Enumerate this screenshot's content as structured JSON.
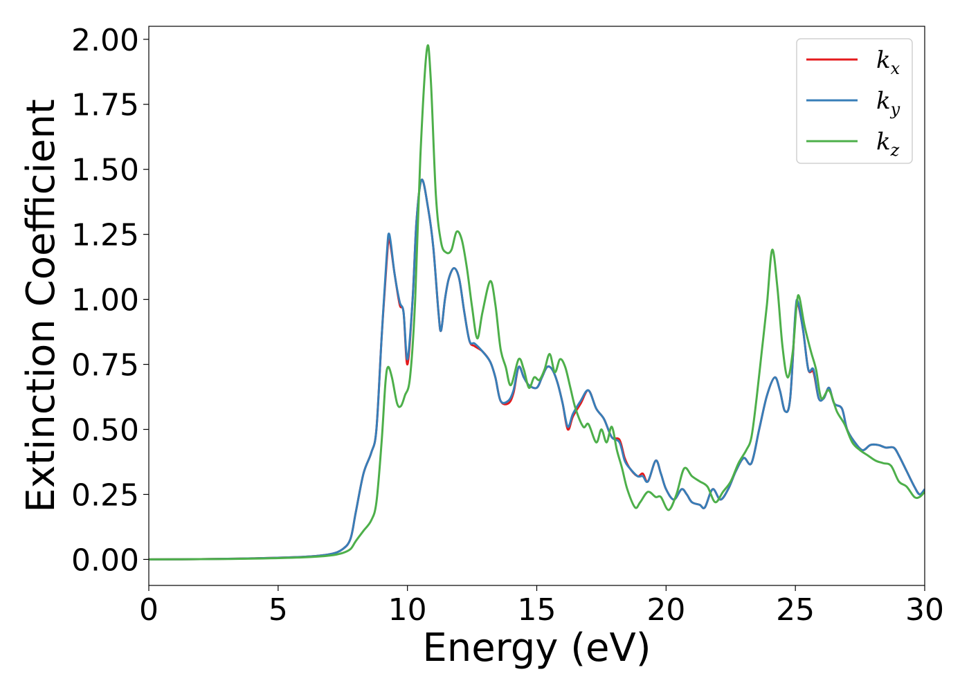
{
  "chart_data": {
    "type": "line",
    "xlabel": "Energy (eV)",
    "ylabel": "Extinction Coefficient",
    "xlim": [
      0,
      30
    ],
    "ylim": [
      -0.1,
      2.05
    ],
    "xticks": [
      0,
      5,
      10,
      15,
      20,
      25,
      30
    ],
    "xtick_labels": [
      "0",
      "5",
      "10",
      "15",
      "20",
      "25",
      "30"
    ],
    "yticks": [
      0.0,
      0.25,
      0.5,
      0.75,
      1.0,
      1.25,
      1.5,
      1.75,
      2.0
    ],
    "ytick_labels": [
      "0.00",
      "0.25",
      "0.50",
      "0.75",
      "1.00",
      "1.25",
      "1.50",
      "1.75",
      "2.00"
    ],
    "grid": false,
    "legend_position": "top-right",
    "series": [
      {
        "name": "k",
        "subscript": "x",
        "color": "#e41a1c",
        "points": [
          [
            0,
            0
          ],
          [
            2,
            0.001
          ],
          [
            4,
            0.004
          ],
          [
            6,
            0.01
          ],
          [
            7,
            0.02
          ],
          [
            7.5,
            0.04
          ],
          [
            7.8,
            0.08
          ],
          [
            8.0,
            0.18
          ],
          [
            8.3,
            0.33
          ],
          [
            8.6,
            0.41
          ],
          [
            8.8,
            0.5
          ],
          [
            9.0,
            0.85
          ],
          [
            9.2,
            1.15
          ],
          [
            9.3,
            1.23
          ],
          [
            9.5,
            1.1
          ],
          [
            9.7,
            0.98
          ],
          [
            9.85,
            0.95
          ],
          [
            10.0,
            0.75
          ],
          [
            10.2,
            1.0
          ],
          [
            10.35,
            1.3
          ],
          [
            10.55,
            1.46
          ],
          [
            10.8,
            1.35
          ],
          [
            11.0,
            1.2
          ],
          [
            11.2,
            0.95
          ],
          [
            11.3,
            0.88
          ],
          [
            11.45,
            1.0
          ],
          [
            11.6,
            1.08
          ],
          [
            11.8,
            1.12
          ],
          [
            12.0,
            1.08
          ],
          [
            12.2,
            0.95
          ],
          [
            12.4,
            0.84
          ],
          [
            12.6,
            0.82
          ],
          [
            12.9,
            0.8
          ],
          [
            13.2,
            0.76
          ],
          [
            13.4,
            0.7
          ],
          [
            13.6,
            0.61
          ],
          [
            13.9,
            0.6
          ],
          [
            14.1,
            0.64
          ],
          [
            14.3,
            0.74
          ],
          [
            14.5,
            0.7
          ],
          [
            14.7,
            0.67
          ],
          [
            15.0,
            0.66
          ],
          [
            15.2,
            0.7
          ],
          [
            15.4,
            0.74
          ],
          [
            15.6,
            0.73
          ],
          [
            15.8,
            0.68
          ],
          [
            16.0,
            0.6
          ],
          [
            16.2,
            0.5
          ],
          [
            16.4,
            0.55
          ],
          [
            16.7,
            0.6
          ],
          [
            17.0,
            0.65
          ],
          [
            17.3,
            0.58
          ],
          [
            17.6,
            0.54
          ],
          [
            17.9,
            0.47
          ],
          [
            18.2,
            0.46
          ],
          [
            18.4,
            0.39
          ],
          [
            18.6,
            0.35
          ],
          [
            18.9,
            0.32
          ],
          [
            19.1,
            0.33
          ],
          [
            19.3,
            0.3
          ],
          [
            19.6,
            0.38
          ],
          [
            19.8,
            0.33
          ],
          [
            20.0,
            0.27
          ],
          [
            20.3,
            0.23
          ],
          [
            20.6,
            0.27
          ],
          [
            20.8,
            0.25
          ],
          [
            21.0,
            0.22
          ],
          [
            21.3,
            0.21
          ],
          [
            21.5,
            0.2
          ],
          [
            21.8,
            0.27
          ],
          [
            22.1,
            0.23
          ],
          [
            22.4,
            0.27
          ],
          [
            22.7,
            0.34
          ],
          [
            23.0,
            0.39
          ],
          [
            23.3,
            0.37
          ],
          [
            23.6,
            0.5
          ],
          [
            23.9,
            0.63
          ],
          [
            24.2,
            0.7
          ],
          [
            24.4,
            0.65
          ],
          [
            24.6,
            0.57
          ],
          [
            24.8,
            0.62
          ],
          [
            25.0,
            0.94
          ],
          [
            25.1,
            0.98
          ],
          [
            25.3,
            0.88
          ],
          [
            25.5,
            0.73
          ],
          [
            25.7,
            0.72
          ],
          [
            25.9,
            0.62
          ],
          [
            26.1,
            0.62
          ],
          [
            26.3,
            0.66
          ],
          [
            26.5,
            0.6
          ],
          [
            26.8,
            0.58
          ],
          [
            27.0,
            0.5
          ],
          [
            27.3,
            0.45
          ],
          [
            27.6,
            0.42
          ],
          [
            27.9,
            0.44
          ],
          [
            28.2,
            0.44
          ],
          [
            28.5,
            0.43
          ],
          [
            28.8,
            0.43
          ],
          [
            29.0,
            0.4
          ],
          [
            29.3,
            0.34
          ],
          [
            29.6,
            0.28
          ],
          [
            29.8,
            0.25
          ],
          [
            30.0,
            0.26
          ]
        ]
      },
      {
        "name": "k",
        "subscript": "y",
        "color": "#377eb8",
        "points": [
          [
            0,
            0
          ],
          [
            2,
            0.001
          ],
          [
            4,
            0.004
          ],
          [
            6,
            0.01
          ],
          [
            7,
            0.02
          ],
          [
            7.5,
            0.04
          ],
          [
            7.8,
            0.08
          ],
          [
            8.0,
            0.18
          ],
          [
            8.3,
            0.33
          ],
          [
            8.6,
            0.41
          ],
          [
            8.8,
            0.5
          ],
          [
            9.0,
            0.85
          ],
          [
            9.2,
            1.17
          ],
          [
            9.3,
            1.25
          ],
          [
            9.5,
            1.1
          ],
          [
            9.7,
            0.99
          ],
          [
            9.85,
            0.95
          ],
          [
            10.0,
            0.77
          ],
          [
            10.2,
            1.0
          ],
          [
            10.35,
            1.3
          ],
          [
            10.55,
            1.46
          ],
          [
            10.8,
            1.35
          ],
          [
            11.0,
            1.2
          ],
          [
            11.2,
            0.95
          ],
          [
            11.3,
            0.88
          ],
          [
            11.45,
            1.0
          ],
          [
            11.6,
            1.08
          ],
          [
            11.8,
            1.12
          ],
          [
            12.0,
            1.08
          ],
          [
            12.2,
            0.95
          ],
          [
            12.4,
            0.84
          ],
          [
            12.6,
            0.83
          ],
          [
            12.9,
            0.8
          ],
          [
            13.2,
            0.76
          ],
          [
            13.4,
            0.7
          ],
          [
            13.6,
            0.61
          ],
          [
            13.9,
            0.61
          ],
          [
            14.1,
            0.65
          ],
          [
            14.3,
            0.74
          ],
          [
            14.5,
            0.7
          ],
          [
            14.7,
            0.67
          ],
          [
            15.0,
            0.66
          ],
          [
            15.2,
            0.7
          ],
          [
            15.4,
            0.74
          ],
          [
            15.6,
            0.73
          ],
          [
            15.8,
            0.68
          ],
          [
            16.0,
            0.6
          ],
          [
            16.2,
            0.51
          ],
          [
            16.4,
            0.56
          ],
          [
            16.7,
            0.61
          ],
          [
            17.0,
            0.65
          ],
          [
            17.3,
            0.58
          ],
          [
            17.6,
            0.54
          ],
          [
            17.9,
            0.47
          ],
          [
            18.2,
            0.45
          ],
          [
            18.4,
            0.38
          ],
          [
            18.6,
            0.35
          ],
          [
            18.9,
            0.32
          ],
          [
            19.1,
            0.32
          ],
          [
            19.3,
            0.3
          ],
          [
            19.6,
            0.38
          ],
          [
            19.8,
            0.33
          ],
          [
            20.0,
            0.27
          ],
          [
            20.3,
            0.23
          ],
          [
            20.6,
            0.27
          ],
          [
            20.8,
            0.25
          ],
          [
            21.0,
            0.22
          ],
          [
            21.3,
            0.21
          ],
          [
            21.5,
            0.2
          ],
          [
            21.8,
            0.27
          ],
          [
            22.1,
            0.23
          ],
          [
            22.4,
            0.27
          ],
          [
            22.7,
            0.34
          ],
          [
            23.0,
            0.39
          ],
          [
            23.3,
            0.37
          ],
          [
            23.6,
            0.5
          ],
          [
            23.9,
            0.63
          ],
          [
            24.2,
            0.7
          ],
          [
            24.4,
            0.65
          ],
          [
            24.6,
            0.57
          ],
          [
            24.8,
            0.62
          ],
          [
            25.0,
            0.95
          ],
          [
            25.1,
            0.99
          ],
          [
            25.3,
            0.88
          ],
          [
            25.5,
            0.73
          ],
          [
            25.7,
            0.73
          ],
          [
            25.9,
            0.62
          ],
          [
            26.1,
            0.62
          ],
          [
            26.3,
            0.66
          ],
          [
            26.5,
            0.6
          ],
          [
            26.8,
            0.58
          ],
          [
            27.0,
            0.5
          ],
          [
            27.3,
            0.45
          ],
          [
            27.6,
            0.42
          ],
          [
            27.9,
            0.44
          ],
          [
            28.2,
            0.44
          ],
          [
            28.5,
            0.43
          ],
          [
            28.8,
            0.43
          ],
          [
            29.0,
            0.4
          ],
          [
            29.3,
            0.34
          ],
          [
            29.6,
            0.28
          ],
          [
            29.8,
            0.25
          ],
          [
            30.0,
            0.27
          ]
        ]
      },
      {
        "name": "k",
        "subscript": "z",
        "color": "#4daf4a",
        "points": [
          [
            0,
            0
          ],
          [
            2,
            0.001
          ],
          [
            4,
            0.003
          ],
          [
            6,
            0.008
          ],
          [
            7,
            0.015
          ],
          [
            7.5,
            0.025
          ],
          [
            7.8,
            0.04
          ],
          [
            8.0,
            0.07
          ],
          [
            8.3,
            0.11
          ],
          [
            8.6,
            0.15
          ],
          [
            8.8,
            0.22
          ],
          [
            9.0,
            0.45
          ],
          [
            9.15,
            0.68
          ],
          [
            9.25,
            0.74
          ],
          [
            9.4,
            0.7
          ],
          [
            9.6,
            0.6
          ],
          [
            9.75,
            0.59
          ],
          [
            9.9,
            0.63
          ],
          [
            10.1,
            0.7
          ],
          [
            10.3,
            1.0
          ],
          [
            10.5,
            1.55
          ],
          [
            10.75,
            1.96
          ],
          [
            10.9,
            1.85
          ],
          [
            11.1,
            1.4
          ],
          [
            11.3,
            1.22
          ],
          [
            11.5,
            1.18
          ],
          [
            11.7,
            1.19
          ],
          [
            11.9,
            1.26
          ],
          [
            12.1,
            1.23
          ],
          [
            12.3,
            1.12
          ],
          [
            12.5,
            0.97
          ],
          [
            12.7,
            0.85
          ],
          [
            12.9,
            0.95
          ],
          [
            13.2,
            1.07
          ],
          [
            13.4,
            0.98
          ],
          [
            13.6,
            0.81
          ],
          [
            13.8,
            0.74
          ],
          [
            14.0,
            0.67
          ],
          [
            14.3,
            0.77
          ],
          [
            14.5,
            0.73
          ],
          [
            14.7,
            0.66
          ],
          [
            14.9,
            0.7
          ],
          [
            15.1,
            0.69
          ],
          [
            15.3,
            0.73
          ],
          [
            15.5,
            0.79
          ],
          [
            15.7,
            0.72
          ],
          [
            15.9,
            0.77
          ],
          [
            16.1,
            0.74
          ],
          [
            16.3,
            0.66
          ],
          [
            16.5,
            0.58
          ],
          [
            16.8,
            0.51
          ],
          [
            17.0,
            0.52
          ],
          [
            17.3,
            0.45
          ],
          [
            17.5,
            0.5
          ],
          [
            17.7,
            0.45
          ],
          [
            17.9,
            0.51
          ],
          [
            18.1,
            0.42
          ],
          [
            18.3,
            0.35
          ],
          [
            18.5,
            0.27
          ],
          [
            18.8,
            0.2
          ],
          [
            19.0,
            0.22
          ],
          [
            19.3,
            0.26
          ],
          [
            19.6,
            0.24
          ],
          [
            19.8,
            0.24
          ],
          [
            20.1,
            0.19
          ],
          [
            20.4,
            0.25
          ],
          [
            20.7,
            0.35
          ],
          [
            21.0,
            0.32
          ],
          [
            21.3,
            0.3
          ],
          [
            21.6,
            0.28
          ],
          [
            21.9,
            0.22
          ],
          [
            22.2,
            0.26
          ],
          [
            22.5,
            0.3
          ],
          [
            22.8,
            0.37
          ],
          [
            23.1,
            0.42
          ],
          [
            23.3,
            0.47
          ],
          [
            23.5,
            0.62
          ],
          [
            23.7,
            0.8
          ],
          [
            23.9,
            0.98
          ],
          [
            24.1,
            1.19
          ],
          [
            24.3,
            1.05
          ],
          [
            24.5,
            0.82
          ],
          [
            24.7,
            0.7
          ],
          [
            24.9,
            0.8
          ],
          [
            25.05,
            0.98
          ],
          [
            25.15,
            1.01
          ],
          [
            25.35,
            0.9
          ],
          [
            25.6,
            0.8
          ],
          [
            25.8,
            0.73
          ],
          [
            26.0,
            0.62
          ],
          [
            26.3,
            0.65
          ],
          [
            26.6,
            0.57
          ],
          [
            26.9,
            0.52
          ],
          [
            27.2,
            0.45
          ],
          [
            27.5,
            0.42
          ],
          [
            27.8,
            0.4
          ],
          [
            28.1,
            0.38
          ],
          [
            28.4,
            0.37
          ],
          [
            28.7,
            0.36
          ],
          [
            29.0,
            0.3
          ],
          [
            29.3,
            0.28
          ],
          [
            29.6,
            0.24
          ],
          [
            29.8,
            0.24
          ],
          [
            30.0,
            0.26
          ]
        ]
      }
    ]
  }
}
